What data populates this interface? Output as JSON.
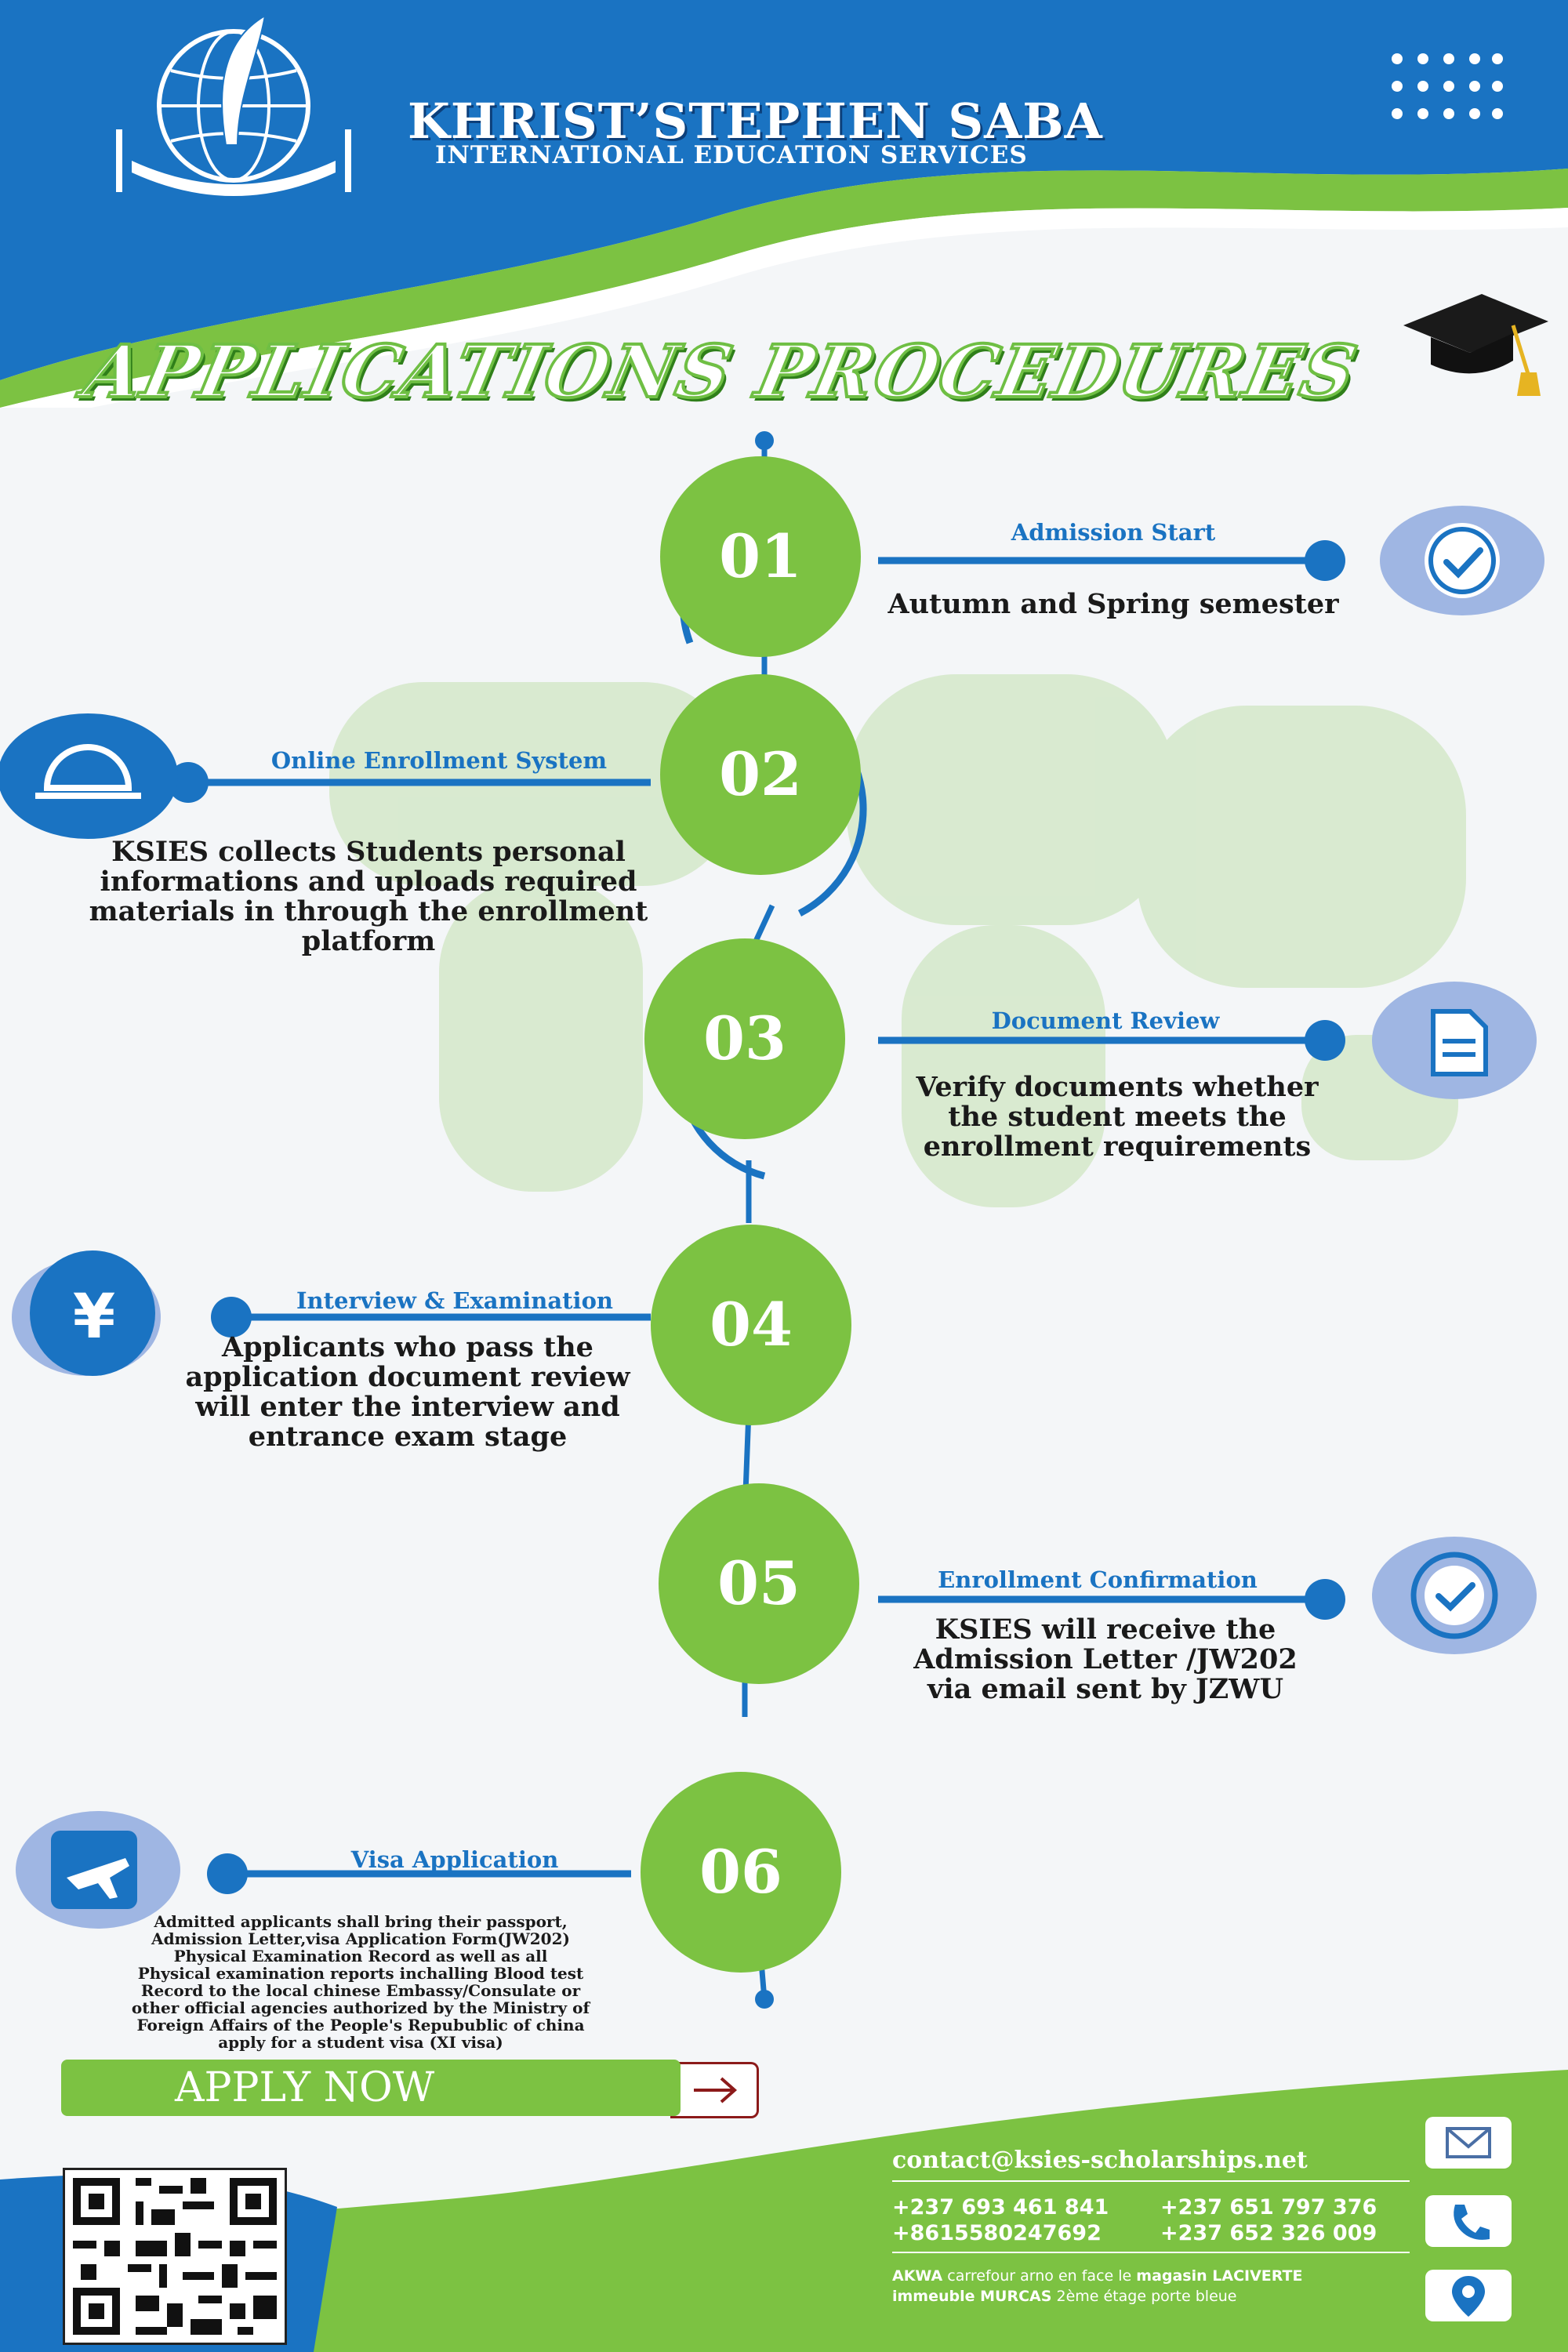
{
  "brand": {
    "name": "KHRIST’STEPHEN SABA",
    "subtitle": "INTERNATIONAL EDUCATION SERVICES"
  },
  "page_title": "APPLICATIONS  PROCEDURES",
  "steps": [
    {
      "num": "01",
      "heading": "Admission Start",
      "body": [
        "Autumn and Spring semester"
      ],
      "icon": "check-icon"
    },
    {
      "num": "02",
      "heading": "Online Enrollment System",
      "body": [
        "KSIES collects Students personal",
        "informations and uploads required",
        "materials in through the enrollment",
        "platform"
      ],
      "icon": "arch-icon"
    },
    {
      "num": "03",
      "heading": "Document Review",
      "body": [
        "Verify documents whether",
        "the student meets the",
        "enrollment requirements"
      ],
      "icon": "document-icon"
    },
    {
      "num": "04",
      "heading": "Interview & Examination",
      "body": [
        "Applicants who pass the",
        "application document review",
        "will enter the interview and",
        "entrance exam stage"
      ],
      "icon": "yen-icon"
    },
    {
      "num": "05",
      "heading": "Enrollment Confirmation",
      "body": [
        "KSIES  will receive the",
        "Admission Letter /JW202",
        "via email sent by JZWU"
      ],
      "icon": "check-circle-icon"
    },
    {
      "num": "06",
      "heading": "Visa Application",
      "body": [
        "Admitted applicants shall bring their passport,",
        "Admission Letter,visa Application Form(JW202)",
        "Physical Examination Record as well as all",
        "Physical examination reports inchalling Blood test",
        "Record to the local chinese Embassy/Consulate or",
        "other official agencies authorized by the Ministry of",
        "Foreign Affairs of the People's Repubublic of china",
        "apply for a student visa (XI visa)"
      ],
      "icon": "plane-icon"
    }
  ],
  "apply_label": "APPLY NOW",
  "contact": {
    "email": "contact@ksies-scholarships.net",
    "phones": [
      "+237 693 461 841",
      "+237 651 797 376",
      "+8615580247692",
      "+237 652 326 009"
    ],
    "address_line1_bold": "AKWA",
    "address_line1_rest": " carrefour arno en face le ",
    "address_line1_bold2": "magasin LACIVERTE",
    "address_line2_bold": "immeuble MURCAS",
    "address_line2_rest": " 2ème étage porte bleue"
  },
  "colors": {
    "blue": "#1a73c2",
    "green": "#7cc242",
    "dark_blue": "#0c3f7a"
  }
}
